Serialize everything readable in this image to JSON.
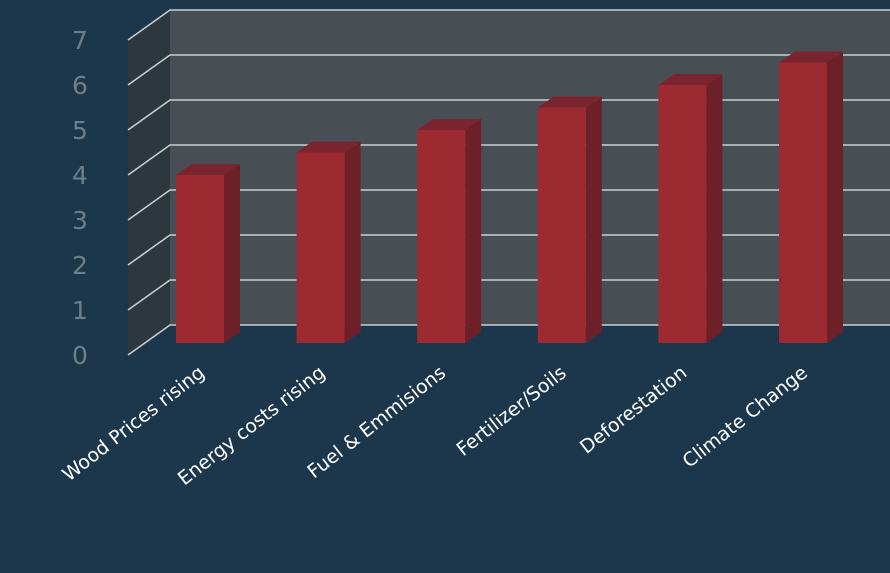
{
  "chart_data": {
    "type": "bar",
    "categories": [
      "Wood Prices rising",
      "Energy costs rising",
      "Fuel & Emmisions",
      "Fertilizer/Soils",
      "Deforestation",
      "Climate Change"
    ],
    "values": [
      4,
      4.5,
      5,
      5.5,
      6,
      6.5
    ],
    "title": "",
    "xlabel": "",
    "ylabel": "",
    "ylim": [
      0,
      7
    ],
    "yticks": [
      0,
      1,
      2,
      3,
      4,
      5,
      6,
      7
    ],
    "grid": true,
    "legend": "none",
    "style": "3d",
    "colors": {
      "bar_front": "#9c2a30",
      "bar_side": "#6e2029",
      "bar_top": "#7a2430",
      "back_wall": "#484f54",
      "side_wall": "#2c373e",
      "gridline": "#c9cdd0",
      "tick_label": "#6b7f8c",
      "category_label": "#ffffff"
    }
  }
}
